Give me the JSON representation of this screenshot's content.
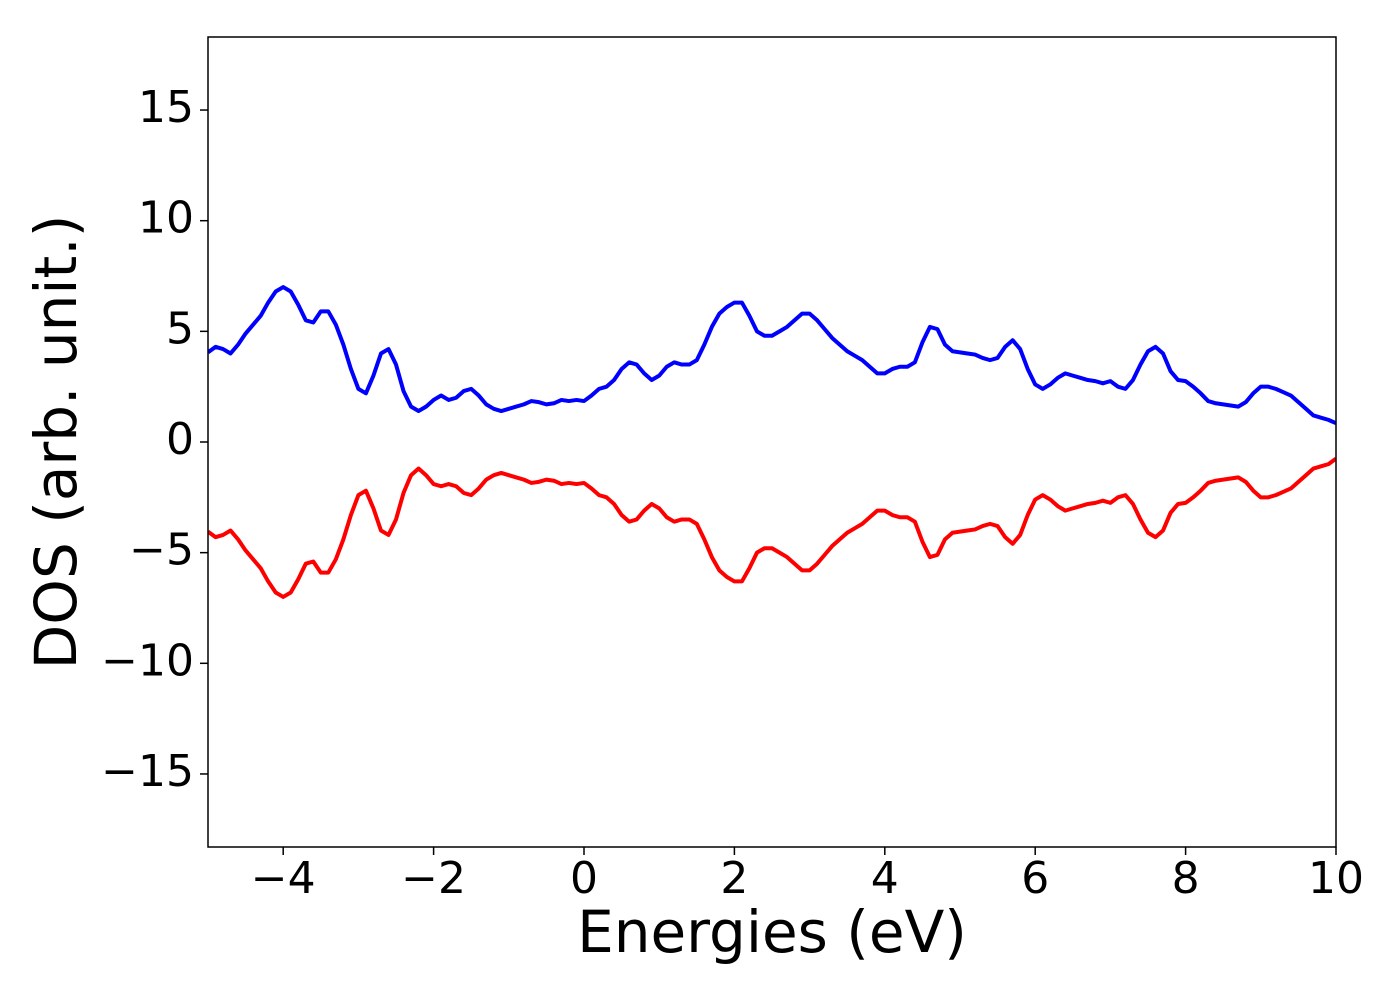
{
  "chart_data": {
    "type": "line",
    "xlabel": "Energies (eV)",
    "ylabel": "DOS (arb. unit.)",
    "xlim": [
      -5,
      10
    ],
    "ylim": [
      -18.3,
      18.3
    ],
    "xticks": [
      {
        "value": -4,
        "label": "−4"
      },
      {
        "value": -2,
        "label": "−2"
      },
      0,
      2,
      4,
      6,
      8,
      10
    ],
    "yticks": [
      {
        "value": -15,
        "label": "−15"
      },
      {
        "value": -10,
        "label": "−10"
      },
      {
        "value": -5,
        "label": "−5"
      },
      0,
      5,
      10,
      15
    ],
    "x": [
      -5,
      -4.9,
      -4.8,
      -4.7,
      -4.6,
      -4.5,
      -4.4,
      -4.3,
      -4.2,
      -4.1,
      -4,
      -3.9,
      -3.8,
      -3.7,
      -3.6,
      -3.5,
      -3.4,
      -3.3,
      -3.2,
      -3.1,
      -3,
      -2.9,
      -2.8,
      -2.7,
      -2.6,
      -2.5,
      -2.4,
      -2.3,
      -2.2,
      -2.1,
      -2,
      -1.9,
      -1.8,
      -1.7,
      -1.6,
      -1.5,
      -1.4,
      -1.3,
      -1.2,
      -1.1,
      -1,
      -0.9,
      -0.8,
      -0.7,
      -0.6,
      -0.5,
      -0.4,
      -0.3,
      -0.2,
      -0.1,
      0,
      0.1,
      0.2,
      0.3,
      0.4,
      0.5,
      0.6,
      0.7,
      0.8,
      0.9,
      1,
      1.1,
      1.2,
      1.3,
      1.4,
      1.5,
      1.6,
      1.7,
      1.8,
      1.9,
      2,
      2.1,
      2.2,
      2.3,
      2.4,
      2.5,
      2.6,
      2.7,
      2.8,
      2.9,
      3,
      3.1,
      3.2,
      3.3,
      3.4,
      3.5,
      3.6,
      3.7,
      3.8,
      3.9,
      4,
      4.1,
      4.2,
      4.3,
      4.4,
      4.5,
      4.6,
      4.7,
      4.8,
      4.9,
      5,
      5.1,
      5.2,
      5.3,
      5.4,
      5.5,
      5.6,
      5.7,
      5.8,
      5.9,
      6,
      6.1,
      6.2,
      6.3,
      6.4,
      6.5,
      6.6,
      6.7,
      6.8,
      6.9,
      7,
      7.1,
      7.2,
      7.3,
      7.4,
      7.5,
      7.6,
      7.7,
      7.8,
      7.9,
      8,
      8.1,
      8.2,
      8.3,
      8.4,
      8.5,
      8.6,
      8.7,
      8.8,
      8.9,
      9,
      9.1,
      9.2,
      9.3,
      9.4,
      9.5,
      9.6,
      9.7,
      9.8,
      9.9,
      10
    ],
    "series": [
      {
        "color": "#0000ff",
        "values": [
          4.05,
          4.3,
          4.2,
          4.0,
          4.4,
          4.9,
          5.3,
          5.7,
          6.3,
          6.8,
          7.0,
          6.8,
          6.2,
          5.5,
          5.4,
          5.9,
          5.9,
          5.3,
          4.4,
          3.3,
          2.4,
          2.2,
          3.0,
          4.0,
          4.2,
          3.5,
          2.3,
          1.6,
          1.4,
          1.6,
          1.9,
          2.1,
          1.9,
          2.0,
          2.3,
          2.4,
          2.1,
          1.7,
          1.5,
          1.4,
          1.5,
          1.6,
          1.7,
          1.85,
          1.8,
          1.7,
          1.75,
          1.9,
          1.85,
          1.9,
          1.85,
          2.1,
          2.4,
          2.5,
          2.8,
          3.3,
          3.6,
          3.5,
          3.1,
          2.8,
          3.0,
          3.4,
          3.6,
          3.5,
          3.5,
          3.7,
          4.4,
          5.2,
          5.8,
          6.1,
          6.3,
          6.3,
          5.7,
          5.0,
          4.8,
          4.8,
          5.0,
          5.2,
          5.5,
          5.8,
          5.8,
          5.5,
          5.1,
          4.7,
          4.4,
          4.1,
          3.9,
          3.7,
          3.4,
          3.1,
          3.1,
          3.3,
          3.4,
          3.4,
          3.6,
          4.5,
          5.2,
          5.1,
          4.4,
          4.1,
          4.05,
          4.0,
          3.95,
          3.8,
          3.7,
          3.8,
          4.3,
          4.6,
          4.2,
          3.3,
          2.6,
          2.4,
          2.6,
          2.9,
          3.1,
          3.0,
          2.9,
          2.8,
          2.75,
          2.65,
          2.75,
          2.5,
          2.4,
          2.8,
          3.5,
          4.1,
          4.3,
          4.0,
          3.2,
          2.8,
          2.75,
          2.5,
          2.2,
          1.85,
          1.75,
          1.7,
          1.65,
          1.6,
          1.8,
          2.2,
          2.5,
          2.5,
          2.4,
          2.25,
          2.1,
          1.8,
          1.5,
          1.2,
          1.1,
          1.0,
          0.85
        ]
      },
      {
        "color": "#ff0000",
        "values": [
          -4.05,
          -4.3,
          -4.2,
          -4.0,
          -4.4,
          -4.9,
          -5.3,
          -5.7,
          -6.3,
          -6.8,
          -7.0,
          -6.8,
          -6.2,
          -5.5,
          -5.4,
          -5.9,
          -5.9,
          -5.3,
          -4.4,
          -3.3,
          -2.4,
          -2.2,
          -3.0,
          -4.0,
          -4.2,
          -3.5,
          -2.3,
          -1.5,
          -1.2,
          -1.5,
          -1.9,
          -2.0,
          -1.9,
          -2.0,
          -2.3,
          -2.4,
          -2.1,
          -1.7,
          -1.5,
          -1.4,
          -1.5,
          -1.6,
          -1.7,
          -1.85,
          -1.8,
          -1.7,
          -1.75,
          -1.9,
          -1.85,
          -1.9,
          -1.85,
          -2.1,
          -2.4,
          -2.5,
          -2.8,
          -3.3,
          -3.6,
          -3.5,
          -3.1,
          -2.8,
          -3.0,
          -3.4,
          -3.6,
          -3.5,
          -3.5,
          -3.7,
          -4.4,
          -5.2,
          -5.8,
          -6.1,
          -6.3,
          -6.3,
          -5.7,
          -5.0,
          -4.8,
          -4.8,
          -5.0,
          -5.2,
          -5.5,
          -5.8,
          -5.8,
          -5.5,
          -5.1,
          -4.7,
          -4.4,
          -4.1,
          -3.9,
          -3.7,
          -3.4,
          -3.1,
          -3.1,
          -3.3,
          -3.4,
          -3.4,
          -3.6,
          -4.5,
          -5.2,
          -5.1,
          -4.4,
          -4.1,
          -4.05,
          -4.0,
          -3.95,
          -3.8,
          -3.7,
          -3.8,
          -4.3,
          -4.6,
          -4.2,
          -3.3,
          -2.6,
          -2.4,
          -2.6,
          -2.9,
          -3.1,
          -3.0,
          -2.9,
          -2.8,
          -2.75,
          -2.65,
          -2.75,
          -2.5,
          -2.4,
          -2.8,
          -3.5,
          -4.1,
          -4.3,
          -4.0,
          -3.2,
          -2.8,
          -2.75,
          -2.5,
          -2.2,
          -1.85,
          -1.75,
          -1.7,
          -1.65,
          -1.6,
          -1.8,
          -2.2,
          -2.5,
          -2.5,
          -2.4,
          -2.25,
          -2.1,
          -1.8,
          -1.5,
          -1.2,
          -1.1,
          -1.0,
          -0.75
        ]
      }
    ]
  }
}
